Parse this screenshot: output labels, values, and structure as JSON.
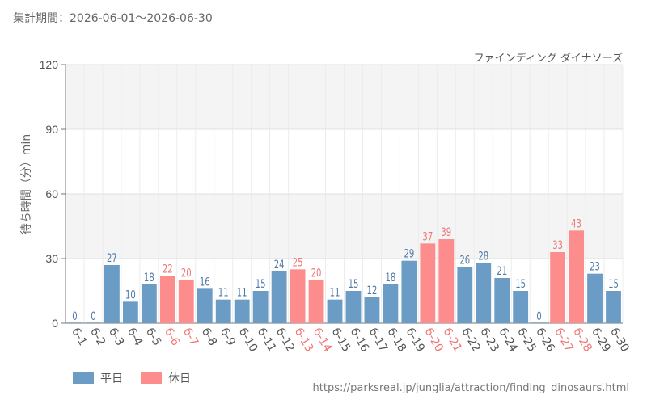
{
  "header": {
    "period_text": "集計期間：2026-06-01～2026-06-30",
    "attraction_name": "ファインディング ダイナソーズ"
  },
  "legend": {
    "weekday_label": "平日",
    "holiday_label": "休日"
  },
  "colors": {
    "weekday": "#6a9cc6",
    "holiday": "#fd8c8c",
    "weekday_text": "#4e79a7",
    "holiday_text": "#f07575",
    "band": "#f4f4f4",
    "grid": "#e0e0e0"
  },
  "source_url": "https://parksreal.jp/junglia/attraction/finding_dinosaurs.html",
  "chart_data": {
    "type": "bar",
    "ylabel": "待ち時間（分）min",
    "ylim": [
      0,
      120
    ],
    "yticks": [
      0,
      30,
      60,
      90,
      120
    ],
    "grid": true,
    "legend_position": "bottom-left",
    "categories": [
      "6-1",
      "6-2",
      "6-3",
      "6-4",
      "6-5",
      "6-6",
      "6-7",
      "6-8",
      "6-9",
      "6-10",
      "6-11",
      "6-12",
      "6-13",
      "6-14",
      "6-15",
      "6-16",
      "6-17",
      "6-18",
      "6-19",
      "6-20",
      "6-21",
      "6-22",
      "6-23",
      "6-24",
      "6-25",
      "6-26",
      "6-27",
      "6-28",
      "6-29",
      "6-30"
    ],
    "values": [
      0,
      0,
      27,
      10,
      18,
      22,
      20,
      16,
      11,
      11,
      15,
      24,
      25,
      20,
      11,
      15,
      12,
      18,
      29,
      37,
      39,
      26,
      28,
      21,
      15,
      0,
      33,
      43,
      23,
      15
    ],
    "day_type": [
      "weekday",
      "weekday",
      "weekday",
      "weekday",
      "weekday",
      "holiday",
      "holiday",
      "weekday",
      "weekday",
      "weekday",
      "weekday",
      "weekday",
      "holiday",
      "holiday",
      "weekday",
      "weekday",
      "weekday",
      "weekday",
      "weekday",
      "holiday",
      "holiday",
      "weekday",
      "weekday",
      "weekday",
      "weekday",
      "weekday",
      "holiday",
      "holiday",
      "weekday",
      "weekday"
    ]
  }
}
